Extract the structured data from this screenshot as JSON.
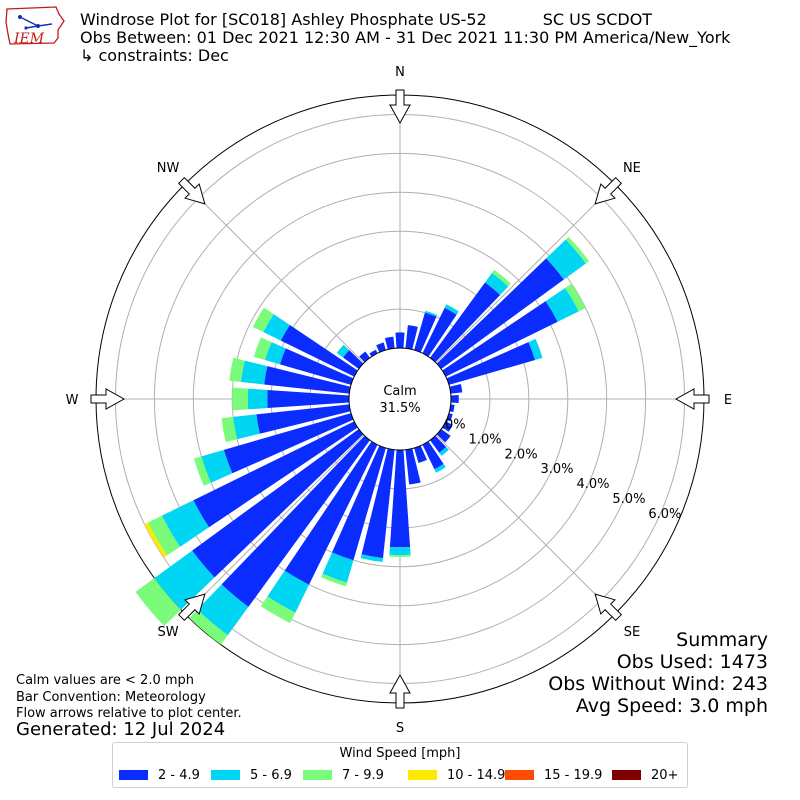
{
  "header": {
    "title_line1": "Windrose Plot for [SC018] Ashley Phosphate US-52           SC US SCDOT",
    "title_line2": "Obs Between: 01 Dec 2021 12:30 AM - 31 Dec 2021 11:30 PM America/New_York",
    "title_line3": "↳ constraints: Dec",
    "logo_text": "IEM"
  },
  "notes": {
    "line1": "Calm values are < 2.0 mph",
    "line2": "Bar Convention: Meteorology",
    "line3": "Flow arrows relative to plot center.",
    "generated": "Generated: 12 Jul 2024"
  },
  "summary": {
    "title": "Summary",
    "obs_used": "Obs Used: 1473",
    "obs_without_wind": "Obs Without Wind: 243",
    "avg_speed": "Avg Speed: 3.0 mph"
  },
  "chart_data": {
    "type": "windrose",
    "calm_label": "Calm",
    "calm_value": "31.5%",
    "directions": [
      "N",
      "NE",
      "E",
      "SE",
      "S",
      "SW",
      "W",
      "NW"
    ],
    "radial_ticks": [
      "0.0%",
      "1.0%",
      "2.0%",
      "3.0%",
      "4.0%",
      "5.0%",
      "6.0%"
    ],
    "radial_range": [
      0,
      6.5
    ],
    "legend_title": "Wind Speed [mph]",
    "bins": [
      {
        "label": "2 - 4.9",
        "color": "#0b2cff"
      },
      {
        "label": "5 - 6.9",
        "color": "#00d6f3"
      },
      {
        "label": "7 - 9.9",
        "color": "#7afc7a"
      },
      {
        "label": "10 - 14.9",
        "color": "#ffe900"
      },
      {
        "label": "15 - 19.9",
        "color": "#ff4a00"
      },
      {
        "label": "20+",
        "color": "#7f0000"
      }
    ],
    "sector_width_deg": 10,
    "sectors": [
      {
        "dir": 0,
        "values": [
          0.4,
          0,
          0,
          0,
          0,
          0
        ]
      },
      {
        "dir": 10,
        "values": [
          0.6,
          0,
          0,
          0,
          0,
          0
        ]
      },
      {
        "dir": 20,
        "values": [
          1.0,
          0.05,
          0,
          0,
          0,
          0
        ]
      },
      {
        "dir": 30,
        "values": [
          1.3,
          0.1,
          0,
          0,
          0,
          0
        ]
      },
      {
        "dir": 40,
        "values": [
          2.4,
          0.3,
          0.1,
          0,
          0,
          0
        ]
      },
      {
        "dir": 50,
        "values": [
          3.9,
          0.7,
          0.1,
          0,
          0,
          0
        ]
      },
      {
        "dir": 60,
        "values": [
          3.2,
          0.6,
          0.2,
          0,
          0,
          0
        ]
      },
      {
        "dir": 70,
        "values": [
          2.3,
          0.2,
          0,
          0,
          0,
          0
        ]
      },
      {
        "dir": 80,
        "values": [
          0.3,
          0,
          0,
          0,
          0,
          0
        ]
      },
      {
        "dir": 90,
        "values": [
          0.2,
          0,
          0,
          0,
          0,
          0
        ]
      },
      {
        "dir": 100,
        "values": [
          0.1,
          0,
          0,
          0,
          0,
          0
        ]
      },
      {
        "dir": 110,
        "values": [
          0.1,
          0,
          0,
          0,
          0,
          0
        ]
      },
      {
        "dir": 120,
        "values": [
          0.2,
          0,
          0,
          0,
          0,
          0
        ]
      },
      {
        "dir": 130,
        "values": [
          0.3,
          0,
          0,
          0,
          0,
          0
        ]
      },
      {
        "dir": 140,
        "values": [
          0.4,
          0.1,
          0,
          0,
          0,
          0
        ]
      },
      {
        "dir": 150,
        "values": [
          0.7,
          0.1,
          0,
          0,
          0,
          0
        ]
      },
      {
        "dir": 160,
        "values": [
          0.4,
          0,
          0,
          0,
          0,
          0
        ]
      },
      {
        "dir": 170,
        "values": [
          0.9,
          0,
          0,
          0,
          0,
          0
        ]
      },
      {
        "dir": 180,
        "values": [
          2.5,
          0.2,
          0.05,
          0,
          0,
          0
        ]
      },
      {
        "dir": 190,
        "values": [
          2.8,
          0.1,
          0,
          0,
          0,
          0
        ]
      },
      {
        "dir": 200,
        "values": [
          3.0,
          0.6,
          0.1,
          0,
          0,
          0
        ]
      },
      {
        "dir": 210,
        "values": [
          4.0,
          0.8,
          0.3,
          0,
          0,
          0
        ]
      },
      {
        "dir": 220,
        "values": [
          5.3,
          0.9,
          0.3,
          0,
          0,
          0
        ]
      },
      {
        "dir": 230,
        "values": [
          5.3,
          1.2,
          0.6,
          0,
          0,
          0
        ]
      },
      {
        "dir": 240,
        "values": [
          4.6,
          0.9,
          0.4,
          0.1,
          0,
          0
        ]
      },
      {
        "dir": 250,
        "values": [
          3.4,
          0.6,
          0.2,
          0,
          0,
          0
        ]
      },
      {
        "dir": 260,
        "values": [
          2.4,
          0.6,
          0.3,
          0,
          0,
          0
        ]
      },
      {
        "dir": 270,
        "values": [
          2.1,
          0.5,
          0.4,
          0,
          0,
          0
        ]
      },
      {
        "dir": 280,
        "values": [
          2.2,
          0.6,
          0.3,
          0,
          0,
          0
        ]
      },
      {
        "dir": 290,
        "values": [
          1.9,
          0.4,
          0.3,
          0,
          0,
          0
        ]
      },
      {
        "dir": 300,
        "values": [
          2.1,
          0.5,
          0.3,
          0,
          0,
          0
        ]
      },
      {
        "dir": 310,
        "values": [
          0.5,
          0.2,
          0,
          0,
          0,
          0
        ]
      },
      {
        "dir": 320,
        "values": [
          0.2,
          0,
          0,
          0,
          0,
          0
        ]
      },
      {
        "dir": 330,
        "values": [
          0.1,
          0,
          0,
          0,
          0,
          0
        ]
      },
      {
        "dir": 340,
        "values": [
          0.2,
          0,
          0,
          0,
          0,
          0
        ]
      },
      {
        "dir": 350,
        "values": [
          0.3,
          0,
          0,
          0,
          0,
          0
        ]
      }
    ]
  }
}
